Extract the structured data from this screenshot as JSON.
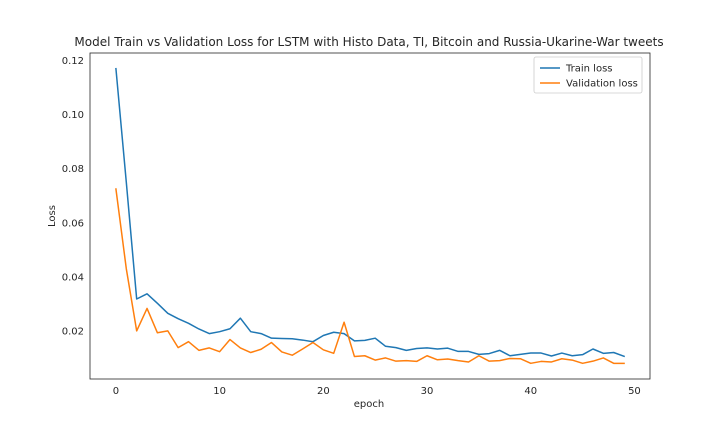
{
  "chart_data": {
    "type": "line",
    "title": "Model Train vs Validation Loss for LSTM with Histo Data, TI, Bitcoin and Russia-Ukarine-War tweets",
    "xlabel": "epoch",
    "ylabel": "Loss",
    "xlim": [
      -2.5,
      51.5
    ],
    "ylim": [
      0.0022,
      0.1228
    ],
    "xticks": [
      0,
      10,
      20,
      30,
      40,
      50
    ],
    "xtick_labels": [
      "0",
      "10",
      "20",
      "30",
      "40",
      "50"
    ],
    "yticks": [
      0.02,
      0.04,
      0.06,
      0.08,
      0.1,
      0.12
    ],
    "ytick_labels": [
      "0.02",
      "0.04",
      "0.06",
      "0.08",
      "0.10",
      "0.12"
    ],
    "grid": false,
    "legend_position": "upper right",
    "x": [
      0,
      1,
      2,
      3,
      4,
      5,
      6,
      7,
      8,
      9,
      10,
      11,
      12,
      13,
      14,
      15,
      16,
      17,
      18,
      19,
      20,
      21,
      22,
      23,
      24,
      25,
      26,
      27,
      28,
      29,
      30,
      31,
      32,
      33,
      34,
      35,
      36,
      37,
      38,
      39,
      40,
      41,
      42,
      43,
      44,
      45,
      46,
      47,
      48,
      49
    ],
    "series": [
      {
        "name": "Train loss",
        "color": "#1f77b4",
        "values": [
          0.117,
          0.075,
          0.0318,
          0.0337,
          0.0302,
          0.0265,
          0.0245,
          0.0228,
          0.0207,
          0.019,
          0.0197,
          0.0208,
          0.0247,
          0.0197,
          0.019,
          0.0173,
          0.0172,
          0.0171,
          0.0166,
          0.016,
          0.0183,
          0.0195,
          0.019,
          0.0163,
          0.0165,
          0.0173,
          0.0143,
          0.0138,
          0.0128,
          0.0135,
          0.0137,
          0.0133,
          0.0136,
          0.0124,
          0.0124,
          0.0113,
          0.0116,
          0.0128,
          0.0108,
          0.0113,
          0.0118,
          0.0118,
          0.0107,
          0.0118,
          0.0108,
          0.0112,
          0.0133,
          0.0117,
          0.012,
          0.0106
        ]
      },
      {
        "name": "Validation loss",
        "color": "#ff7f0e",
        "values": [
          0.0725,
          0.043,
          0.02,
          0.0283,
          0.0193,
          0.02,
          0.0138,
          0.016,
          0.0128,
          0.0137,
          0.0123,
          0.0168,
          0.0137,
          0.012,
          0.0132,
          0.0157,
          0.0122,
          0.011,
          0.0133,
          0.0157,
          0.013,
          0.0117,
          0.0232,
          0.0105,
          0.0108,
          0.0092,
          0.01,
          0.0088,
          0.009,
          0.0087,
          0.0108,
          0.0093,
          0.0096,
          0.009,
          0.0085,
          0.0108,
          0.0088,
          0.009,
          0.0098,
          0.0097,
          0.008,
          0.0087,
          0.0085,
          0.0097,
          0.0092,
          0.008,
          0.0088,
          0.01,
          0.008,
          0.008
        ]
      }
    ]
  }
}
